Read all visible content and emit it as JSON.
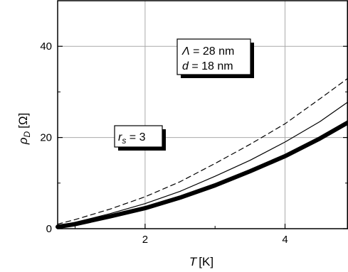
{
  "chart_data": {
    "type": "line",
    "xlabel": {
      "symbol": "T",
      "unit": "[K]"
    },
    "ylabel": {
      "symbol": "ρ",
      "sub": "D",
      "unit": "[Ω]"
    },
    "xlim": [
      0.75,
      4.9
    ],
    "ylim": [
      0,
      50
    ],
    "x_ticks": [
      2,
      4
    ],
    "y_ticks": [
      0,
      20,
      40
    ],
    "grid": true,
    "annotations": {
      "box1": {
        "l1_sym": "Λ",
        "l1_val": " = 28 nm",
        "l2_sym": "d",
        "l2_val": " = 18 nm"
      },
      "box2": {
        "sym": "r",
        "sub": "s",
        "val": " = 3"
      }
    },
    "series": [
      {
        "style": "dashed",
        "color": "#000000",
        "x": [
          0.75,
          1.0,
          1.5,
          2.0,
          2.5,
          3.0,
          3.5,
          4.0,
          4.5,
          4.9
        ],
        "y": [
          1.0,
          2.0,
          4.3,
          7.0,
          10.3,
          14.3,
          18.5,
          23.0,
          28.5,
          33.0
        ]
      },
      {
        "style": "solid",
        "color": "#000000",
        "x": [
          0.75,
          1.0,
          1.5,
          2.0,
          2.5,
          3.0,
          3.5,
          4.0,
          4.5,
          4.9
        ],
        "y": [
          0.5,
          1.4,
          3.3,
          5.5,
          8.2,
          11.5,
          15.0,
          19.0,
          23.5,
          27.8
        ]
      },
      {
        "style": "thick",
        "color": "#000000",
        "x": [
          0.75,
          1.0,
          1.5,
          2.0,
          2.5,
          3.0,
          3.5,
          4.0,
          4.5,
          4.9
        ],
        "y": [
          0.4,
          1.0,
          2.7,
          4.5,
          6.8,
          9.5,
          12.6,
          15.9,
          19.8,
          23.3
        ]
      }
    ]
  }
}
